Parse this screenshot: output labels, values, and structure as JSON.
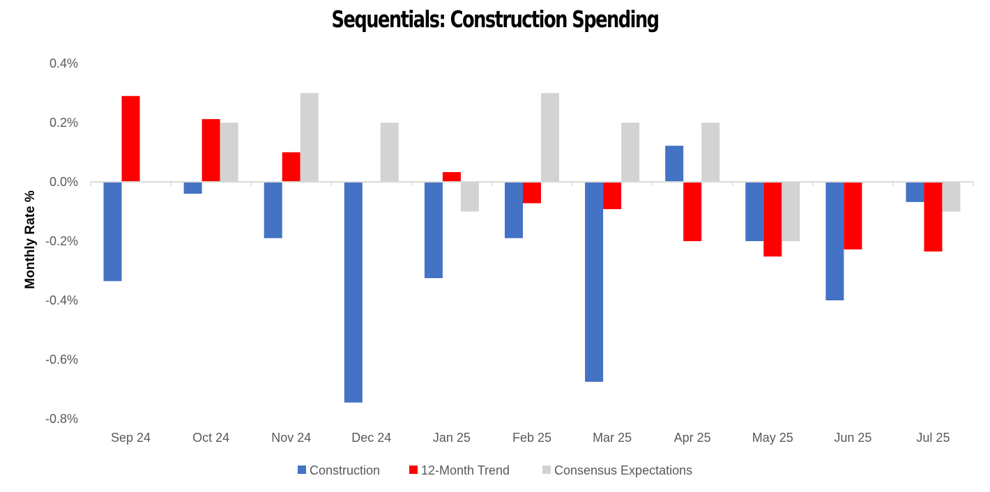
{
  "chart_data": {
    "type": "bar",
    "title": "Sequentials: Construction Spending",
    "xlabel": "",
    "ylabel": "Monthly Rate %",
    "ylim": [
      -0.8,
      0.4
    ],
    "yticks": [
      0.4,
      0.2,
      0.0,
      -0.2,
      -0.4,
      -0.6,
      -0.8
    ],
    "ytick_labels": [
      "0.4%",
      "0.2%",
      "0.0%",
      "-0.2%",
      "-0.4%",
      "-0.6%",
      "-0.8%"
    ],
    "grid": false,
    "legend_position": "bottom-center",
    "categories": [
      "Sep 24",
      "Oct 24",
      "Nov 24",
      "Dec 24",
      "Jan 25",
      "Feb 25",
      "Mar 25",
      "Apr 25",
      "May 25",
      "Jun 25",
      "Jul 25"
    ],
    "series": [
      {
        "name": "Construction",
        "color": "#4472C4",
        "values": [
          -0.335,
          -0.04,
          -0.19,
          -0.745,
          -0.325,
          -0.19,
          -0.675,
          0.122,
          -0.2,
          -0.4,
          -0.068
        ]
      },
      {
        "name": "12-Month Trend",
        "color": "#FF0000",
        "values": [
          0.29,
          0.212,
          0.1,
          null,
          0.033,
          -0.072,
          -0.092,
          -0.2,
          -0.252,
          -0.228,
          -0.235
        ]
      },
      {
        "name": "Consensus Expectations",
        "color": "#D3D3D3",
        "values": [
          null,
          0.2,
          0.3,
          0.2,
          -0.1,
          0.3,
          0.2,
          0.2,
          -0.2,
          null,
          -0.1
        ]
      }
    ]
  }
}
